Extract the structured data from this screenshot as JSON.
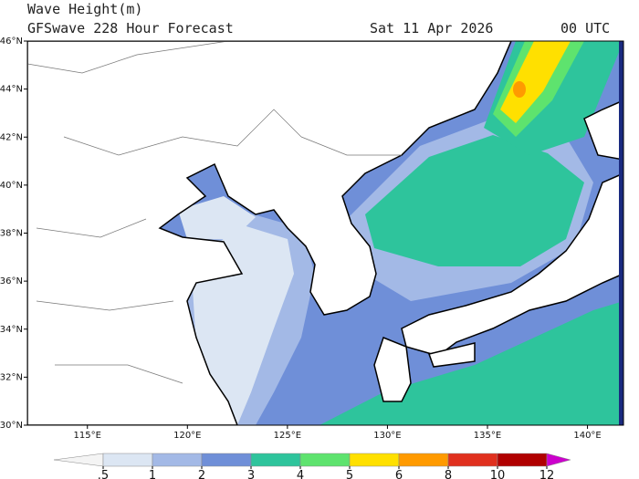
{
  "header": {
    "title": "Wave Height(m)",
    "subtitle": "GFSwave 228 Hour Forecast",
    "date": "Sat 11 Apr 2026",
    "time": "00 UTC"
  },
  "map": {
    "lat_ticks": [
      {
        "value": 30,
        "label": "30°N"
      },
      {
        "value": 32,
        "label": "32°N"
      },
      {
        "value": 34,
        "label": "34°N"
      },
      {
        "value": 36,
        "label": "36°N"
      },
      {
        "value": 38,
        "label": "38°N"
      },
      {
        "value": 40,
        "label": "40°N"
      },
      {
        "value": 42,
        "label": "42°N"
      },
      {
        "value": 44,
        "label": "44°N"
      },
      {
        "value": 46,
        "label": "46°N"
      }
    ],
    "lon_ticks": [
      {
        "value": 115,
        "label": "115°E"
      },
      {
        "value": 120,
        "label": "120°E"
      },
      {
        "value": 125,
        "label": "125°E"
      },
      {
        "value": 130,
        "label": "130°E"
      },
      {
        "value": 135,
        "label": "135°E"
      },
      {
        "value": 140,
        "label": "140°E"
      }
    ],
    "lat_range": [
      30,
      46
    ],
    "lon_range": [
      112,
      141.8
    ]
  },
  "colorbar": {
    "levels": [
      {
        "value": 0.5,
        "label": ".5"
      },
      1,
      2,
      3,
      4,
      5,
      6,
      8,
      10,
      12
    ],
    "colors": [
      "#f4f4f4",
      "#dce6f3",
      "#a3b9e6",
      "#6f8fd8",
      "#2ec49c",
      "#5ee36e",
      "#ffe000",
      "#ff9a00",
      "#e0301e",
      "#b00000",
      "#cc00cc"
    ]
  }
}
